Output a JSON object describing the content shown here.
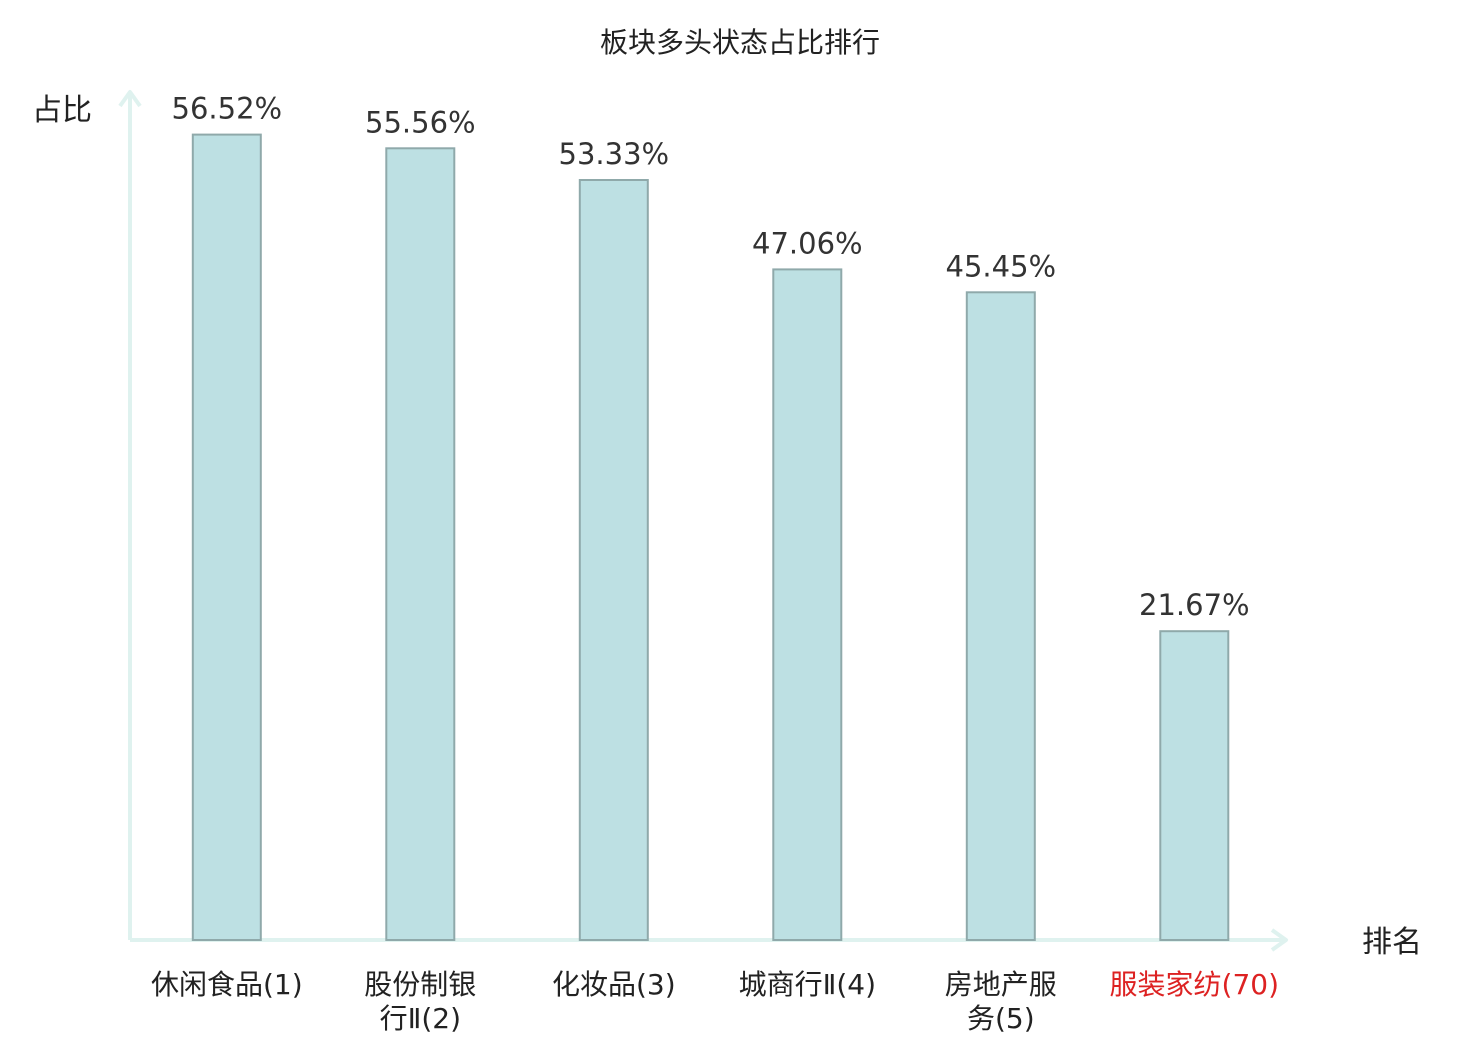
{
  "chart_data": {
    "type": "bar",
    "title": "板块多头状态占比排行",
    "ylabel": "占比",
    "xlabel": "排名",
    "ylim": [
      0,
      60
    ],
    "grid": false,
    "legend": "none",
    "categories": [
      [
        "休闲食品(1)"
      ],
      [
        "股份制银",
        "行Ⅱ(2)"
      ],
      [
        "化妆品(3)"
      ],
      [
        "城商行Ⅱ(4)"
      ],
      [
        "房地产服",
        "务(5)"
      ],
      [
        "服装家纺(70)"
      ]
    ],
    "values": [
      56.52,
      55.56,
      53.33,
      47.06,
      45.45,
      21.67
    ],
    "value_labels": [
      "56.52%",
      "55.56%",
      "53.33%",
      "47.06%",
      "45.45%",
      "21.67%"
    ],
    "highlight_index": 5,
    "colors": {
      "bar_fill": "#bde0e3",
      "bar_stroke": "#8fa9aa",
      "axis": "#dff2ef",
      "text": "#333333",
      "highlight_text": "#dd2222"
    }
  }
}
